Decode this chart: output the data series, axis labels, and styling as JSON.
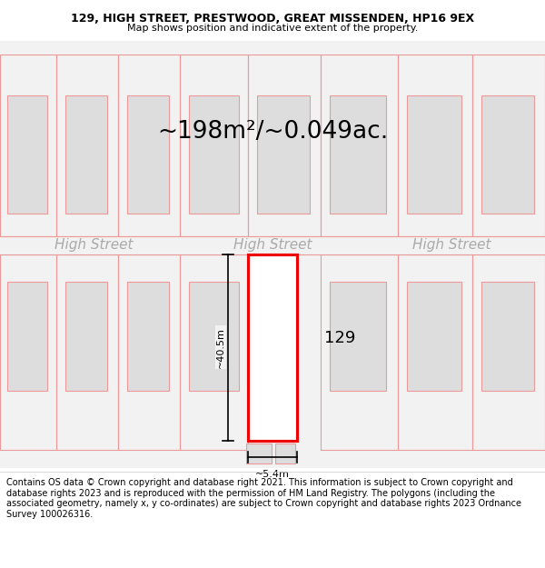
{
  "title_line1": "129, HIGH STREET, PRESTWOOD, GREAT MISSENDEN, HP16 9EX",
  "title_line2": "Map shows position and indicative extent of the property.",
  "area_text": "~198m²/~0.049ac.",
  "street_labels": [
    "High Street",
    "High Street",
    "High Street"
  ],
  "property_number": "129",
  "dim_height": "~40.5m",
  "dim_width": "~5.4m",
  "footer_text": "Contains OS data © Crown copyright and database right 2021. This information is subject to Crown copyright and database rights 2023 and is reproduced with the permission of HM Land Registry. The polygons (including the associated geometry, namely x, y co-ordinates) are subject to Crown copyright and database rights 2023 Ordnance Survey 100026316.",
  "map_bg": "#f2f2f2",
  "plot_color": "#ffffff",
  "plot_edge_color": "#ee0000",
  "building_fill": "#dddddd",
  "building_edge": "#ee9999",
  "title_fontsize": 9,
  "subtitle_fontsize": 8,
  "area_fontsize": 19,
  "street_fontsize": 11,
  "propnum_fontsize": 13,
  "dim_fontsize": 8,
  "footer_fontsize": 7
}
